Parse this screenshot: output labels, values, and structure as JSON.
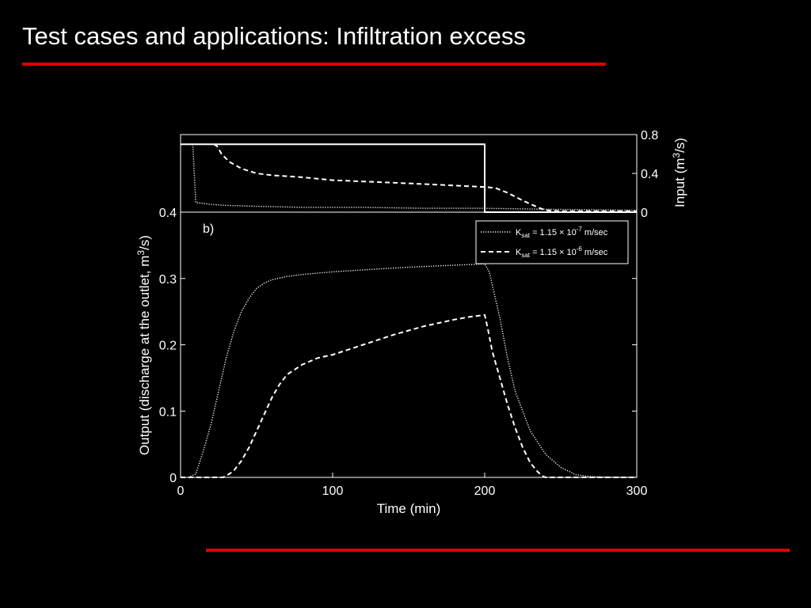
{
  "slide": {
    "title": "Test cases and applications: Infiltration excess"
  },
  "colors": {
    "accent": "#e00000",
    "background": "#000000",
    "foreground": "#ffffff"
  },
  "chart_data": [
    {
      "type": "line",
      "panel": "input",
      "ylabel": {
        "pre": "Input (m",
        "sup": "3",
        "post": "/s)"
      },
      "ylim": [
        0,
        0.8
      ],
      "xlim": [
        0,
        300
      ],
      "yticks": [
        "0",
        "0.4",
        "0.8"
      ],
      "y_axis_side": "right",
      "grid": false,
      "series": [
        {
          "style": "solid",
          "x": [
            0,
            200,
            200,
            300
          ],
          "y": [
            0.7,
            0.7,
            0,
            0
          ]
        },
        {
          "style": "dotted",
          "x": [
            8,
            10,
            15,
            20,
            30,
            50,
            80,
            120,
            160,
            200,
            240,
            300
          ],
          "y": [
            0.7,
            0.1,
            0.09,
            0.08,
            0.07,
            0.06,
            0.05,
            0.05,
            0.04,
            0.04,
            0.03,
            0.02
          ]
        },
        {
          "style": "dashed",
          "x": [
            22,
            24,
            27,
            32,
            40,
            50,
            60,
            80,
            100,
            130,
            160,
            200,
            207,
            215,
            225,
            235,
            240,
            250,
            300
          ],
          "y": [
            0.7,
            0.68,
            0.6,
            0.52,
            0.45,
            0.4,
            0.38,
            0.36,
            0.33,
            0.31,
            0.29,
            0.26,
            0.25,
            0.2,
            0.12,
            0.05,
            0.02,
            0.01,
            0.01
          ]
        }
      ]
    },
    {
      "type": "line",
      "panel": "output",
      "annotation": "b)",
      "xlabel": "Time (min)",
      "ylabel": {
        "pre": "Output (discharge at the outlet, m",
        "sup": "3",
        "post": "/s)"
      },
      "xlim": [
        0,
        300
      ],
      "ylim": [
        0,
        0.4
      ],
      "xticks": [
        "0",
        "100",
        "200",
        "300"
      ],
      "yticks": [
        "0",
        "0.1",
        "0.2",
        "0.3",
        "0.4"
      ],
      "legend_position": "top-right",
      "grid": false,
      "series": [
        {
          "style": "dotted",
          "label": {
            "pre": "K",
            "sub": "sat",
            "mid": " = 1.15 × 10",
            "sup": "-7",
            "post": " m/sec"
          },
          "x": [
            5,
            10,
            15,
            20,
            25,
            30,
            35,
            40,
            45,
            50,
            55,
            60,
            70,
            80,
            100,
            120,
            150,
            180,
            200,
            203,
            210,
            215,
            220,
            230,
            240,
            250,
            260,
            270,
            300
          ],
          "y": [
            0,
            0.005,
            0.04,
            0.08,
            0.13,
            0.18,
            0.22,
            0.25,
            0.27,
            0.285,
            0.293,
            0.298,
            0.303,
            0.306,
            0.31,
            0.313,
            0.317,
            0.32,
            0.322,
            0.31,
            0.24,
            0.18,
            0.13,
            0.07,
            0.035,
            0.015,
            0.004,
            0.001,
            0
          ]
        },
        {
          "style": "dashed",
          "label": {
            "pre": "K",
            "sub": "sat",
            "mid": " = 1.15 × 10",
            "sup": "-6",
            "post": " m/sec"
          },
          "x": [
            0,
            28,
            32,
            35,
            40,
            45,
            50,
            55,
            60,
            65,
            70,
            80,
            90,
            100,
            120,
            140,
            160,
            180,
            190,
            200,
            202,
            205,
            210,
            215,
            220,
            225,
            230,
            235,
            238,
            240,
            300
          ],
          "y": [
            0,
            0,
            0.005,
            0.01,
            0.025,
            0.045,
            0.07,
            0.095,
            0.12,
            0.14,
            0.155,
            0.17,
            0.18,
            0.185,
            0.2,
            0.215,
            0.228,
            0.238,
            0.242,
            0.245,
            0.225,
            0.19,
            0.15,
            0.11,
            0.075,
            0.045,
            0.022,
            0.008,
            0.002,
            0,
            0
          ]
        }
      ]
    }
  ]
}
